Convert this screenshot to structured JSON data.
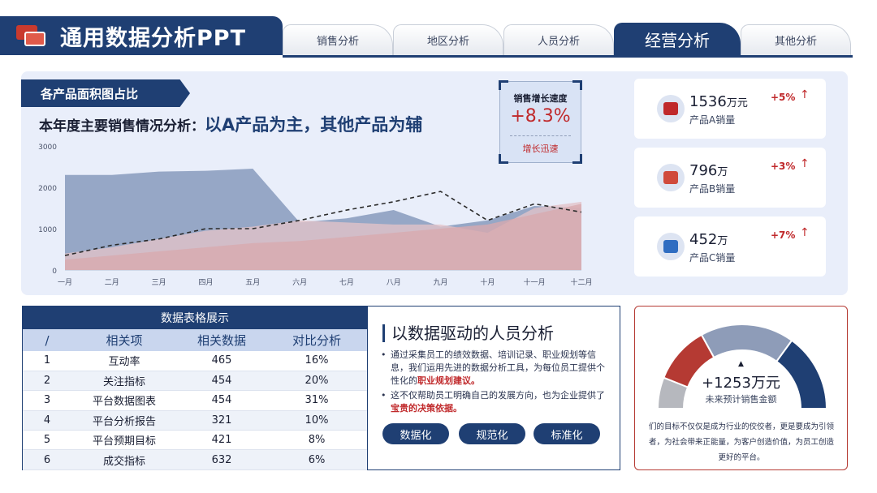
{
  "header": {
    "title": "通用数据分析PPT",
    "tabs": [
      {
        "label": "销售分析",
        "active": false
      },
      {
        "label": "地区分析",
        "active": false
      },
      {
        "label": "人员分析",
        "active": false
      },
      {
        "label": "经营分析",
        "active": true
      },
      {
        "label": "其他分析",
        "active": false
      }
    ]
  },
  "chart_section": {
    "tag": "各产品面积图占比",
    "heading_prefix": "本年度主要销售情况分析：",
    "heading_highlight": "以A产品为主，其他产品为辅"
  },
  "chart_data": {
    "type": "area",
    "categories": [
      "一月",
      "二月",
      "三月",
      "四月",
      "五月",
      "六月",
      "七月",
      "八月",
      "九月",
      "十月",
      "十一月",
      "十二月"
    ],
    "ylim": [
      0,
      3000
    ],
    "yticks": [
      0,
      1000,
      2000,
      3000
    ],
    "series": [
      {
        "type": "area",
        "color": "#7f93b7",
        "values": [
          2300,
          2300,
          2380,
          2400,
          2450,
          1150,
          1250,
          1450,
          1050,
          1200,
          1550,
          1500
        ]
      },
      {
        "type": "area",
        "color": "#e3c3c8",
        "values": [
          400,
          550,
          750,
          950,
          1050,
          1200,
          1150,
          1100,
          1100,
          900,
          1500,
          1650
        ]
      },
      {
        "type": "area",
        "color": "#d9a9ae",
        "values": [
          250,
          350,
          450,
          550,
          650,
          700,
          800,
          900,
          1000,
          1100,
          1350,
          1600
        ]
      },
      {
        "type": "line",
        "style": "dashed",
        "color": "#2b2b2b",
        "values": [
          350,
          600,
          750,
          1000,
          1000,
          1200,
          1450,
          1650,
          1900,
          1200,
          1600,
          1400
        ]
      }
    ],
    "grid": false,
    "legend": "none"
  },
  "growth": {
    "label": "销售增长速度",
    "value": "+8.3%",
    "note": "增长迅速"
  },
  "kpis": [
    {
      "value": "1536",
      "unit": "万元",
      "name": "产品A销量",
      "change": "+5%",
      "icon": "product-a-icon",
      "color": "#c0292b"
    },
    {
      "value": "796",
      "unit": "万",
      "name": "产品B销量",
      "change": "+3%",
      "icon": "product-b-icon",
      "color": "#d04a3b"
    },
    {
      "value": "452",
      "unit": "万",
      "name": "产品C销量",
      "change": "+7%",
      "icon": "product-c-icon",
      "color": "#2f6dc1"
    }
  ],
  "table": {
    "caption": "数据表格展示",
    "headers": [
      "/",
      "相关项",
      "相关数据",
      "对比分析"
    ],
    "rows": [
      [
        "1",
        "互动率",
        "465",
        "16%"
      ],
      [
        "2",
        "关注指标",
        "454",
        "20%"
      ],
      [
        "3",
        "平台数据图表",
        "454",
        "31%"
      ],
      [
        "4",
        "平台分析报告",
        "321",
        "10%"
      ],
      [
        "5",
        "平台预期目标",
        "421",
        "8%"
      ],
      [
        "6",
        "成交指标",
        "632",
        "6%"
      ]
    ]
  },
  "people_analysis": {
    "title": "以数据驱动的人员分析",
    "bullet1_text": "通过采集员工的绩效数据、培训记录、职业规划等信息，我们运用先进的数据分析工具，为每位员工提供个性化的",
    "bullet1_emphasis": "职业规划建议。",
    "bullet2_text": "这不仅帮助员工明确自己的发展方向，也为企业提供了",
    "bullet2_emphasis": "宝贵的决策依据。",
    "pills": [
      "数据化",
      "规范化",
      "标准化"
    ]
  },
  "gauge": {
    "marker": "▲",
    "value": "+1253万元",
    "label": "未来预计销售金额",
    "description": "们的目标不仅仅是成为行业的佼佼者，更是要成为引领者，为社会带来正能量，为客户创造价值，为员工创造更好的平台。",
    "segments": [
      {
        "color": "#b6b8be",
        "fraction": 0.12
      },
      {
        "color": "#b53a33",
        "fraction": 0.22
      },
      {
        "color": "#8e9cb8",
        "fraction": 0.36
      },
      {
        "color": "#1f3f73",
        "fraction": 0.3
      }
    ]
  }
}
